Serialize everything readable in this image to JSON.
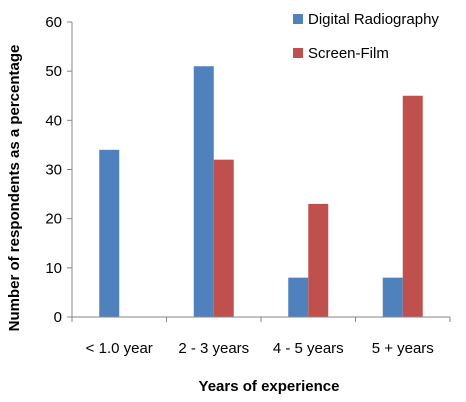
{
  "chart_data": {
    "type": "bar",
    "title": "",
    "xlabel": "Years of experience",
    "ylabel": "Number of respondents as a percentage",
    "ylim": [
      0,
      60
    ],
    "yticks": [
      0,
      10,
      20,
      30,
      40,
      50,
      60
    ],
    "categories": [
      "< 1.0 year",
      "2 - 3 years",
      "4 - 5 years",
      "5 + years"
    ],
    "series": [
      {
        "name": "Digital Radiography",
        "color": "#4F81BD",
        "values": [
          34,
          51,
          8,
          8
        ]
      },
      {
        "name": "Screen-Film",
        "color": "#C0504D",
        "values": [
          0,
          32,
          23,
          45
        ]
      }
    ],
    "grid": false,
    "legend": "top-right"
  }
}
